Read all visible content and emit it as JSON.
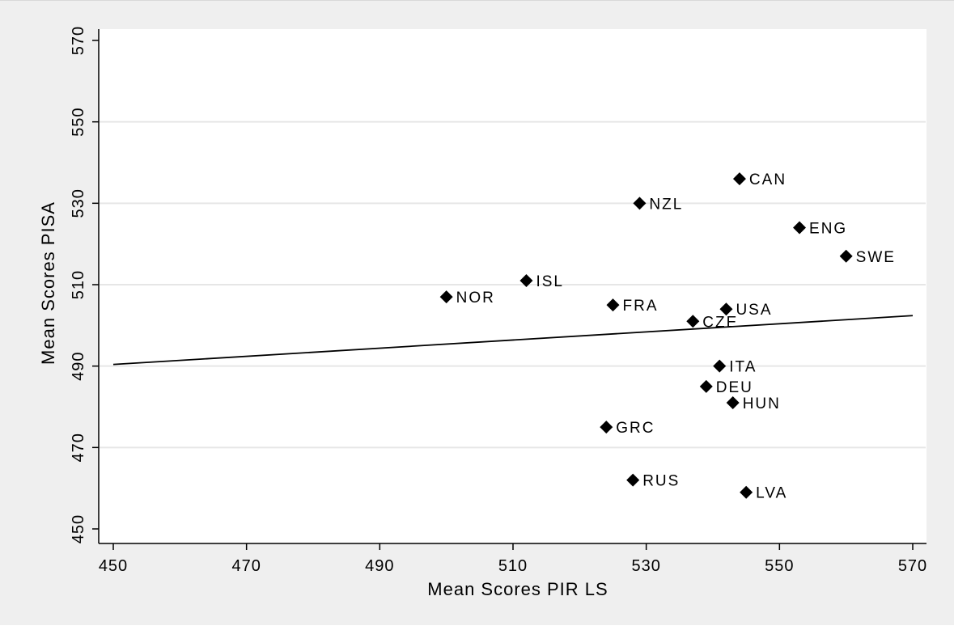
{
  "chart_data": {
    "type": "scatter",
    "xlabel": "Mean Scores PIR LS",
    "ylabel": "Mean Scores PISA",
    "xlim": [
      450,
      570
    ],
    "ylim": [
      450,
      570
    ],
    "xticks": [
      "450",
      "470",
      "490",
      "510",
      "530",
      "550",
      "570"
    ],
    "yticks": [
      "450",
      "470",
      "490",
      "510",
      "530",
      "550",
      "570"
    ],
    "grid": "horizontal",
    "legend": "none",
    "points": [
      {
        "label": "CAN",
        "x": 544,
        "y": 536
      },
      {
        "label": "NZL",
        "x": 529,
        "y": 530
      },
      {
        "label": "ENG",
        "x": 553,
        "y": 524
      },
      {
        "label": "SWE",
        "x": 560,
        "y": 517
      },
      {
        "label": "ISL",
        "x": 512,
        "y": 511
      },
      {
        "label": "NOR",
        "x": 500,
        "y": 507
      },
      {
        "label": "FRA",
        "x": 525,
        "y": 505
      },
      {
        "label": "USA",
        "x": 542,
        "y": 504
      },
      {
        "label": "CZE",
        "x": 537,
        "y": 501
      },
      {
        "label": "ITA",
        "x": 541,
        "y": 490
      },
      {
        "label": "DEU",
        "x": 539,
        "y": 485
      },
      {
        "label": "HUN",
        "x": 543,
        "y": 481
      },
      {
        "label": "GRC",
        "x": 524,
        "y": 475
      },
      {
        "label": "RUS",
        "x": 528,
        "y": 462
      },
      {
        "label": "LVA",
        "x": 545,
        "y": 459
      }
    ],
    "fit_line": {
      "x": [
        450,
        570
      ],
      "y": [
        490.4,
        502.4
      ]
    },
    "colors": {
      "marker": "#000000",
      "line": "#000000",
      "grid": "#e6e6e6",
      "background": "#efefef",
      "plot": "#ffffff"
    }
  }
}
